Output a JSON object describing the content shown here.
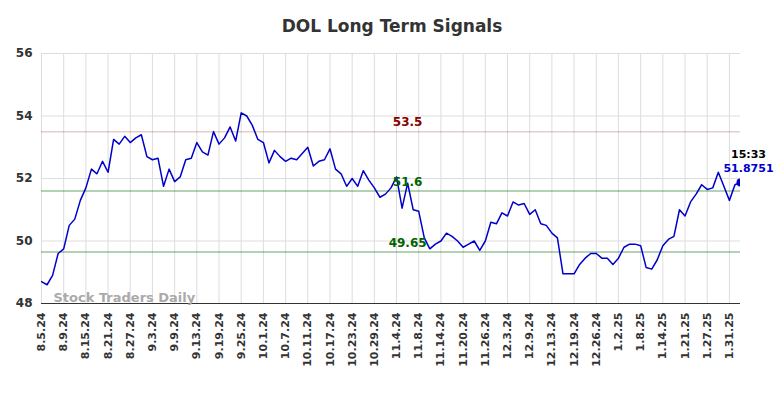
{
  "chart_data": {
    "type": "line",
    "title": "DOL Long Term Signals",
    "color": "#0000cc",
    "grid": true,
    "ylim": [
      48,
      56
    ],
    "yticks": [
      48,
      50,
      52,
      54,
      56
    ],
    "categories": [
      "8.5.24",
      null,
      null,
      null,
      "8.9.24",
      null,
      null,
      null,
      "8.15.24",
      null,
      null,
      null,
      "8.21.24",
      null,
      null,
      null,
      "8.27.24",
      null,
      null,
      null,
      "9.3.24",
      null,
      null,
      null,
      "9.9.24",
      null,
      null,
      null,
      "9.13.24",
      null,
      null,
      null,
      "9.19.24",
      null,
      null,
      null,
      "9.25.24",
      null,
      null,
      null,
      "10.1.24",
      null,
      null,
      null,
      "10.7.24",
      null,
      null,
      null,
      "10.11.24",
      null,
      null,
      null,
      "10.17.24",
      null,
      null,
      null,
      "10.23.24",
      null,
      null,
      null,
      "10.29.24",
      null,
      null,
      null,
      "11.4.24",
      null,
      null,
      null,
      "11.8.24",
      null,
      null,
      null,
      "11.14.24",
      null,
      null,
      null,
      "11.20.24",
      null,
      null,
      null,
      "11.26.24",
      null,
      null,
      null,
      "12.3.24",
      null,
      null,
      null,
      "12.9.24",
      null,
      null,
      null,
      "12.13.24",
      null,
      null,
      null,
      "12.19.24",
      null,
      null,
      null,
      "12.26.24",
      null,
      null,
      null,
      "1.2.25",
      null,
      null,
      null,
      "1.8.25",
      null,
      null,
      null,
      "1.14.25",
      null,
      null,
      null,
      "1.21.25",
      null,
      null,
      null,
      "1.27.25",
      null,
      null,
      null,
      "1.31.25",
      null,
      null
    ],
    "values": [
      48.7,
      48.6,
      48.9,
      49.6,
      49.75,
      50.5,
      50.7,
      51.3,
      51.7,
      52.3,
      52.15,
      52.55,
      52.2,
      53.25,
      53.1,
      53.35,
      53.15,
      53.3,
      53.4,
      52.7,
      52.6,
      52.65,
      51.75,
      52.3,
      51.9,
      52.05,
      52.6,
      52.65,
      53.15,
      52.85,
      52.75,
      53.5,
      53.1,
      53.3,
      53.65,
      53.2,
      54.1,
      54.0,
      53.7,
      53.25,
      53.15,
      52.5,
      52.9,
      52.7,
      52.55,
      52.65,
      52.6,
      52.8,
      53.0,
      52.4,
      52.55,
      52.6,
      52.95,
      52.3,
      52.15,
      51.75,
      52.0,
      51.75,
      52.25,
      51.95,
      51.7,
      51.4,
      51.5,
      51.7,
      52.05,
      51.05,
      51.85,
      51.0,
      50.95,
      50.1,
      49.75,
      49.9,
      50.0,
      50.25,
      50.15,
      50.0,
      49.8,
      49.9,
      50.0,
      49.7,
      50.0,
      50.6,
      50.55,
      50.9,
      50.8,
      51.25,
      51.15,
      51.2,
      50.85,
      51.0,
      50.55,
      50.5,
      50.25,
      50.1,
      48.95,
      48.95,
      48.95,
      49.25,
      49.45,
      49.6,
      49.6,
      49.45,
      49.45,
      49.25,
      49.45,
      49.8,
      49.9,
      49.9,
      49.85,
      49.15,
      49.1,
      49.4,
      49.85,
      50.05,
      50.15,
      51.0,
      50.8,
      51.25,
      51.5,
      51.8,
      51.65,
      51.7,
      52.2,
      51.75,
      51.3,
      51.8,
      51.8751
    ],
    "reference_lines": [
      {
        "value": 53.5,
        "label": "53.5",
        "color": "#8b0000"
      },
      {
        "value": 51.6,
        "label": "51.6",
        "color": "#006400"
      },
      {
        "value": 49.65,
        "label": "49.65",
        "color": "#006400"
      }
    ],
    "last_point": {
      "time": "15:33",
      "value": 51.8751,
      "value_label": "51.8751"
    },
    "watermark": "Stock Traders Daily"
  }
}
